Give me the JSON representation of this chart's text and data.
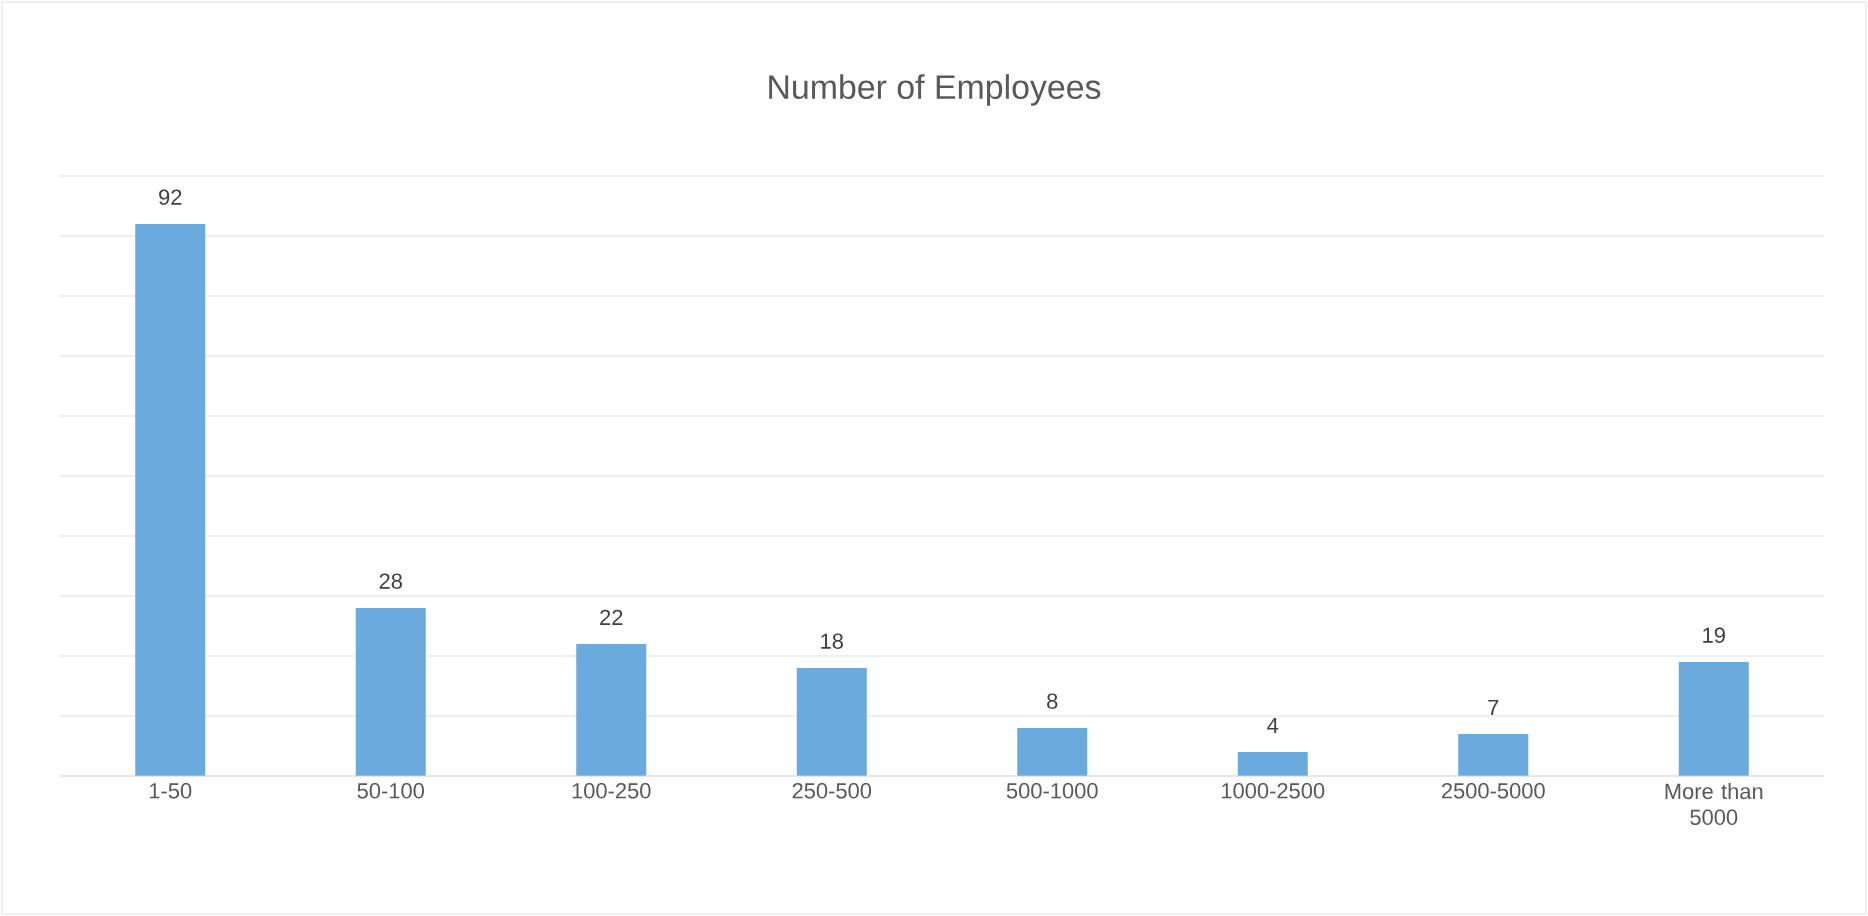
{
  "chart_data": {
    "type": "bar",
    "title": "Number of Employees",
    "categories": [
      "1-50",
      "50-100",
      "100-250",
      "250-500",
      "500-1000",
      "1000-2500",
      "2500-5000",
      "More than 5000"
    ],
    "values": [
      92,
      28,
      22,
      18,
      8,
      4,
      7,
      19
    ],
    "color": "#6aaadc",
    "ylim": [
      0,
      100
    ],
    "yticks": [
      0,
      10,
      20,
      30,
      40,
      50,
      60,
      70,
      80,
      90,
      100
    ],
    "grid": "y",
    "tick_labels": "x",
    "data_labels": true
  }
}
